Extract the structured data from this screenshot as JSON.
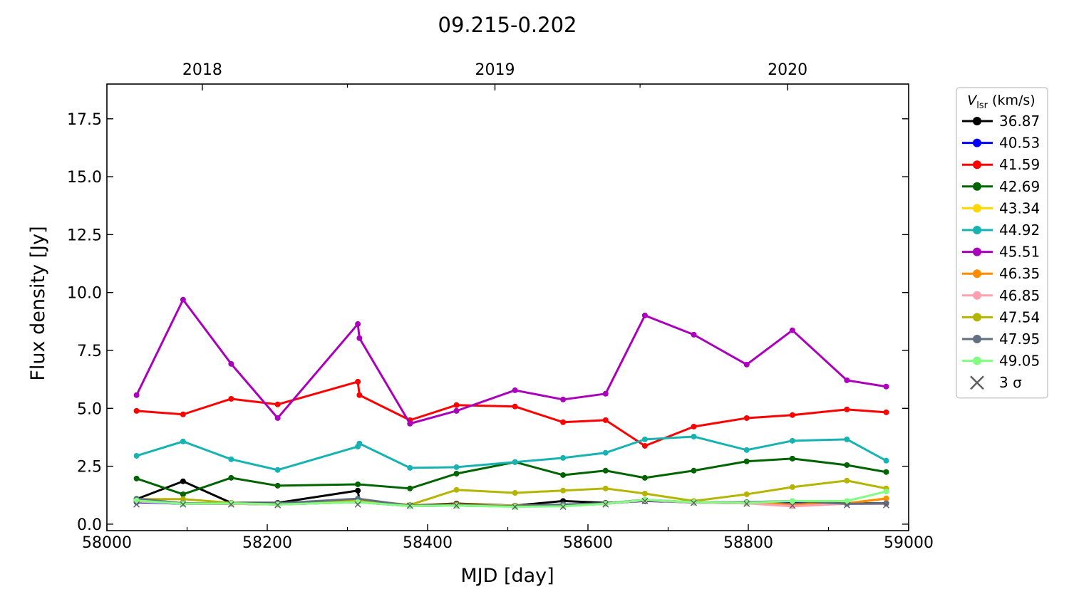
{
  "chart_data": {
    "type": "line",
    "title": "09.215-0.202",
    "xlabel": "MJD [day]",
    "ylabel": "Flux density [Jy]",
    "xlim": [
      58000,
      59000
    ],
    "ylim": [
      -0.28,
      19.0
    ],
    "xticks": [
      58000,
      58200,
      58400,
      58600,
      58800,
      59000
    ],
    "xtick_labels": [
      "58000",
      "58200",
      "58400",
      "58600",
      "58800",
      "59000"
    ],
    "yticks": [
      0,
      2.5,
      5,
      7.5,
      10,
      12.5,
      15,
      17.5
    ],
    "ytick_labels": [
      "0.0",
      "2.5",
      "5.0",
      "7.5",
      "10.0",
      "12.5",
      "15.0",
      "17.5"
    ],
    "top_axis": {
      "ticks": [
        58119,
        58484,
        58849
      ],
      "labels": [
        "2018",
        "2019",
        "2020"
      ],
      "minor_ticks": [
        58300,
        58665
      ]
    },
    "grid": false,
    "legend": {
      "title_main": "V",
      "title_sub": "lsr",
      "title_unit": " (km/s)",
      "placement": "outside-right",
      "sigma_label": "3 σ"
    },
    "x": [
      58037,
      58095,
      58155,
      58213,
      58313,
      58315,
      58378,
      58436,
      58509,
      58569,
      58622,
      58671,
      58732,
      58798,
      58855,
      58923,
      58972
    ],
    "series": [
      {
        "name": "36.87",
        "color": "#000000",
        "values": [
          1.08,
          1.85,
          0.92,
          0.92,
          1.45,
          1.0,
          0.8,
          0.89,
          0.8,
          1.0,
          0.92,
          1.0,
          0.95,
          0.92,
          0.95,
          0.9,
          0.9
        ]
      },
      {
        "name": "40.53",
        "color": "#0000ff",
        "values": [
          0.95,
          0.88,
          0.88,
          0.85,
          0.95,
          null,
          0.78,
          0.8,
          0.76,
          0.78,
          0.88,
          1.02,
          0.93,
          0.9,
          0.9,
          0.88,
          0.88
        ]
      },
      {
        "name": "41.59",
        "color": "#ff0000",
        "values": [
          4.89,
          4.74,
          5.41,
          5.17,
          6.15,
          5.57,
          4.49,
          5.14,
          5.08,
          4.4,
          4.49,
          3.38,
          4.21,
          4.58,
          4.71,
          4.95,
          4.83
        ]
      },
      {
        "name": "42.69",
        "color": "#006400",
        "values": [
          1.97,
          1.29,
          2.0,
          1.66,
          1.72,
          null,
          1.54,
          2.18,
          2.68,
          2.12,
          2.31,
          2.0,
          2.31,
          2.71,
          2.83,
          2.55,
          2.25
        ]
      },
      {
        "name": "43.34",
        "color": "#ffd700",
        "values": [
          1.0,
          0.9,
          0.9,
          0.85,
          1.0,
          null,
          0.8,
          0.85,
          0.8,
          0.82,
          0.9,
          1.05,
          0.95,
          0.9,
          0.85,
          0.9,
          1.12
        ]
      },
      {
        "name": "44.92",
        "color": "#17b3b3",
        "values": [
          2.95,
          3.57,
          2.8,
          2.34,
          3.35,
          3.48,
          2.43,
          2.46,
          2.68,
          2.86,
          3.08,
          3.66,
          3.78,
          3.2,
          3.6,
          3.66,
          2.74
        ]
      },
      {
        "name": "45.51",
        "color": "#aa00bb",
        "values": [
          5.57,
          9.69,
          6.92,
          4.58,
          8.64,
          8.03,
          4.34,
          4.89,
          5.78,
          5.38,
          5.63,
          9.01,
          8.18,
          6.89,
          8.37,
          6.21,
          5.94
        ]
      },
      {
        "name": "46.35",
        "color": "#ff8c00",
        "values": [
          1.0,
          0.9,
          0.88,
          0.85,
          1.0,
          null,
          0.8,
          0.83,
          0.78,
          0.8,
          0.88,
          1.04,
          0.95,
          0.9,
          0.85,
          0.9,
          1.1
        ]
      },
      {
        "name": "46.85",
        "color": "#ffa0b0",
        "values": [
          0.98,
          0.88,
          0.88,
          0.85,
          0.95,
          null,
          0.78,
          0.8,
          0.76,
          0.78,
          0.88,
          1.03,
          0.93,
          0.9,
          0.77,
          0.88,
          0.88
        ]
      },
      {
        "name": "47.54",
        "color": "#b5b500",
        "values": [
          1.08,
          1.08,
          0.92,
          0.86,
          1.05,
          null,
          0.83,
          1.48,
          1.35,
          1.45,
          1.54,
          1.32,
          1.0,
          1.29,
          1.6,
          1.88,
          1.54
        ]
      },
      {
        "name": "47.95",
        "color": "#607080",
        "values": [
          1.1,
          0.9,
          0.9,
          0.9,
          1.1,
          null,
          0.8,
          0.82,
          0.78,
          0.85,
          0.9,
          1.05,
          0.95,
          0.95,
          1.0,
          0.88,
          0.9
        ]
      },
      {
        "name": "49.05",
        "color": "#80ff80",
        "values": [
          1.02,
          0.88,
          0.9,
          0.85,
          0.95,
          null,
          0.78,
          0.8,
          0.75,
          0.77,
          0.88,
          1.05,
          0.95,
          0.92,
          1.0,
          1.0,
          1.41
        ]
      }
    ],
    "sigma3": {
      "color": "#606060",
      "values": [
        0.85,
        0.85,
        0.85,
        0.82,
        0.85,
        null,
        0.8,
        0.8,
        0.75,
        0.75,
        0.85,
        1.0,
        0.92,
        0.88,
        0.8,
        0.82,
        0.82
      ]
    }
  }
}
